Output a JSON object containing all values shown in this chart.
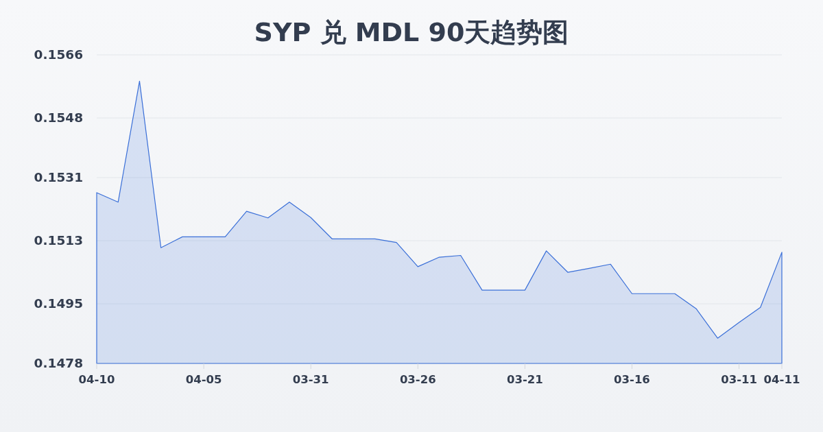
{
  "chart_data": {
    "type": "area",
    "title": "SYP 兑 MDL 90天趋势图",
    "categories": [
      "04-10",
      null,
      null,
      null,
      null,
      "04-05",
      null,
      null,
      null,
      null,
      "03-31",
      null,
      null,
      null,
      null,
      "03-26",
      null,
      null,
      null,
      null,
      "03-21",
      null,
      null,
      null,
      null,
      "03-16",
      null,
      null,
      null,
      null,
      "03-11",
      null,
      "04-11"
    ],
    "series": [
      {
        "color": "#3a6fd8",
        "values": [
          0.15267,
          0.1524,
          0.15585,
          0.1511,
          0.15141,
          0.15141,
          0.15141,
          0.15214,
          0.15195,
          0.1524,
          0.15196,
          0.15135,
          0.15135,
          0.15135,
          0.15125,
          0.15056,
          0.15083,
          0.15088,
          0.14989,
          0.14989,
          0.14989,
          0.15101,
          0.1504,
          0.15051,
          0.15063,
          0.14979,
          0.14979,
          0.14979,
          0.14936,
          0.14852,
          0.14897,
          0.1494,
          0.15097
        ]
      }
    ],
    "ylim": [
      0.1478,
      0.1566
    ],
    "yticks": [
      0.1478,
      0.1495,
      0.1513,
      0.1531,
      0.1548,
      0.1566
    ],
    "grid": "y"
  }
}
